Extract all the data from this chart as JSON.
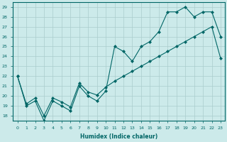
{
  "xlabel": "Humidex (Indice chaleur)",
  "background_color": "#cceaea",
  "grid_color": "#aacccc",
  "line_color": "#006666",
  "xlim": [
    -0.5,
    23.5
  ],
  "ylim": [
    17.5,
    29.5
  ],
  "yticks": [
    18,
    19,
    20,
    21,
    22,
    23,
    24,
    25,
    26,
    27,
    28,
    29
  ],
  "xticks": [
    0,
    1,
    2,
    3,
    4,
    5,
    6,
    7,
    8,
    9,
    10,
    11,
    12,
    13,
    14,
    15,
    16,
    17,
    18,
    19,
    20,
    21,
    22,
    23
  ],
  "curve1_x": [
    0,
    1,
    2,
    3,
    4,
    5,
    6,
    7,
    8,
    9,
    10,
    11,
    12,
    13,
    14,
    15,
    16,
    17,
    18,
    19,
    20,
    21,
    22,
    23
  ],
  "curve1_y": [
    22.0,
    19.0,
    19.5,
    17.5,
    19.5,
    19.0,
    18.5,
    21.0,
    20.0,
    19.5,
    20.5,
    25.0,
    24.5,
    23.5,
    25.0,
    25.5,
    26.5,
    28.5,
    28.5,
    29.0,
    28.0,
    28.5,
    28.5,
    26.0
  ],
  "curve2_x": [
    0,
    1,
    2,
    3,
    4,
    5,
    6,
    7,
    8,
    9,
    10,
    11,
    12,
    13,
    14,
    15,
    16,
    17,
    18,
    19,
    20,
    21,
    22,
    23
  ],
  "curve2_y": [
    22.0,
    19.2,
    19.8,
    18.0,
    19.8,
    19.4,
    18.9,
    21.3,
    20.4,
    20.1,
    20.9,
    21.5,
    22.0,
    22.5,
    23.0,
    23.5,
    24.0,
    24.5,
    25.0,
    25.5,
    26.0,
    26.5,
    27.0,
    23.8
  ]
}
